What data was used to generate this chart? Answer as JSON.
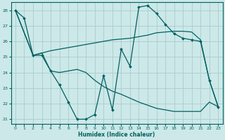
{
  "xlabel": "Humidex (Indice chaleur)",
  "xlim": [
    -0.5,
    23.5
  ],
  "ylim": [
    20.7,
    28.5
  ],
  "yticks": [
    21,
    22,
    23,
    24,
    25,
    26,
    27,
    28
  ],
  "xticks": [
    0,
    1,
    2,
    3,
    4,
    5,
    6,
    7,
    8,
    9,
    10,
    11,
    12,
    13,
    14,
    15,
    16,
    17,
    18,
    19,
    20,
    21,
    22,
    23
  ],
  "bg_color": "#cce8e8",
  "grid_color": "#aacccc",
  "line_color": "#006060",
  "line1_x": [
    0,
    1,
    2,
    3,
    4,
    5,
    6,
    7,
    8,
    9,
    10,
    11,
    12,
    13,
    14,
    15,
    16,
    17,
    18,
    19,
    20,
    21,
    22,
    23
  ],
  "line1_y": [
    28.0,
    27.5,
    25.1,
    25.1,
    24.1,
    23.2,
    22.1,
    21.0,
    21.0,
    21.3,
    23.8,
    21.6,
    25.5,
    24.4,
    28.2,
    28.3,
    27.8,
    27.1,
    26.5,
    26.2,
    26.1,
    26.0,
    23.5,
    21.8
  ],
  "line2_x": [
    0,
    2,
    3,
    4,
    5,
    6,
    7,
    8,
    9,
    10,
    11,
    12,
    13,
    14,
    15,
    16,
    17,
    18,
    19,
    20,
    21,
    22,
    23
  ],
  "line2_y": [
    28.0,
    25.1,
    25.25,
    25.4,
    25.5,
    25.6,
    25.7,
    25.8,
    25.9,
    26.0,
    26.1,
    26.15,
    26.2,
    26.3,
    26.4,
    26.55,
    26.6,
    26.65,
    26.65,
    26.6,
    26.1,
    23.5,
    21.8
  ],
  "line3_x": [
    0,
    2,
    3,
    4,
    5,
    6,
    7,
    8,
    9,
    10,
    11,
    12,
    13,
    14,
    15,
    16,
    17,
    18,
    19,
    20,
    21,
    22,
    23
  ],
  "line3_y": [
    28.0,
    25.1,
    25.25,
    24.1,
    24.0,
    24.1,
    24.2,
    24.0,
    23.5,
    23.1,
    22.8,
    22.6,
    22.35,
    22.1,
    21.9,
    21.7,
    21.6,
    21.5,
    21.5,
    21.5,
    21.5,
    22.1,
    21.8
  ]
}
